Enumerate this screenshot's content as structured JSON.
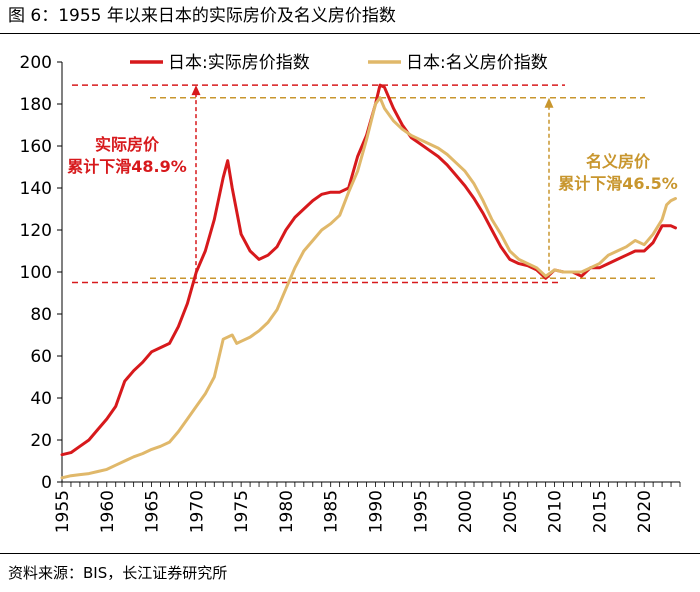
{
  "figure": {
    "title": "图 6：1955 年以来日本的实际房价及名义房价指数",
    "source": "资料来源：BIS，长江证券研究所"
  },
  "chart_data": {
    "type": "line",
    "xlim": [
      1955,
      2024
    ],
    "ylim": [
      0,
      200
    ],
    "yticks": [
      0,
      20,
      40,
      60,
      80,
      100,
      120,
      140,
      160,
      180,
      200
    ],
    "xticks": [
      1955,
      1960,
      1965,
      1970,
      1975,
      1980,
      1985,
      1990,
      1995,
      2000,
      2005,
      2010,
      2015,
      2020
    ],
    "legend_position": "top",
    "series": [
      {
        "name": "日本:实际房价指数",
        "color": "#d7191c",
        "x": [
          1955,
          1956,
          1957,
          1958,
          1959,
          1960,
          1961,
          1962,
          1963,
          1964,
          1965,
          1966,
          1967,
          1968,
          1969,
          1970,
          1971,
          1972,
          1973,
          1973.5,
          1974,
          1975,
          1976,
          1977,
          1978,
          1979,
          1980,
          1981,
          1982,
          1983,
          1984,
          1985,
          1986,
          1987,
          1988,
          1989,
          1990,
          1990.5,
          1991,
          1992,
          1993,
          1994,
          1995,
          1996,
          1997,
          1998,
          1999,
          2000,
          2001,
          2002,
          2003,
          2004,
          2005,
          2006,
          2007,
          2008,
          2009,
          2010,
          2011,
          2012,
          2013,
          2014,
          2015,
          2016,
          2017,
          2018,
          2019,
          2020,
          2021,
          2022,
          2023,
          2023.5
        ],
        "values": [
          13,
          14,
          17,
          20,
          25,
          30,
          36,
          48,
          53,
          57,
          62,
          64,
          66,
          74,
          85,
          100,
          110,
          125,
          145,
          153,
          140,
          118,
          110,
          106,
          108,
          112,
          120,
          126,
          130,
          134,
          137,
          138,
          138,
          140,
          155,
          165,
          180,
          189,
          188,
          178,
          170,
          164,
          161,
          158,
          155,
          151,
          146,
          141,
          135,
          128,
          120,
          112,
          106,
          104,
          103,
          101,
          97,
          101,
          100,
          100,
          98,
          102,
          102,
          104,
          106,
          108,
          110,
          110,
          114,
          122,
          122,
          121
        ]
      },
      {
        "name": "日本:名义房价指数",
        "color": "#e0b86a",
        "x": [
          1955,
          1956,
          1957,
          1958,
          1959,
          1960,
          1961,
          1962,
          1963,
          1964,
          1965,
          1966,
          1967,
          1968,
          1969,
          1970,
          1971,
          1972,
          1973,
          1974,
          1974.5,
          1975,
          1976,
          1977,
          1978,
          1979,
          1980,
          1981,
          1982,
          1983,
          1984,
          1985,
          1986,
          1987,
          1988,
          1989,
          1990,
          1990.5,
          1991,
          1992,
          1993,
          1994,
          1995,
          1996,
          1997,
          1998,
          1999,
          2000,
          2001,
          2002,
          2003,
          2004,
          2005,
          2006,
          2007,
          2008,
          2009,
          2010,
          2011,
          2012,
          2013,
          2014,
          2015,
          2016,
          2017,
          2018,
          2019,
          2020,
          2021,
          2022,
          2022.5,
          2023,
          2023.5
        ],
        "values": [
          2,
          3,
          3.5,
          4,
          5,
          6,
          8,
          10,
          12,
          13.5,
          15.5,
          17,
          19,
          24,
          30,
          36,
          42,
          50,
          68,
          70,
          66,
          67,
          69,
          72,
          76,
          82,
          92,
          102,
          110,
          115,
          120,
          123,
          127,
          138,
          148,
          163,
          180,
          183,
          178,
          172,
          168,
          165,
          163,
          161,
          159,
          156,
          152,
          148,
          142,
          134,
          125,
          118,
          110,
          106,
          104,
          102,
          98,
          101,
          100,
          100,
          100,
          102,
          104,
          108,
          110,
          112,
          115,
          113,
          118,
          125,
          132,
          134,
          135
        ]
      }
    ],
    "annotations": [
      {
        "text_lines": [
          "实际房价",
          "累计下滑48.9%"
        ],
        "color": "#d7191c",
        "y_range": [
          95,
          189
        ]
      },
      {
        "text_lines": [
          "名义房价",
          "累计下滑46.5%"
        ],
        "color": "#c8962e",
        "y_range": [
          97,
          183
        ]
      }
    ]
  }
}
